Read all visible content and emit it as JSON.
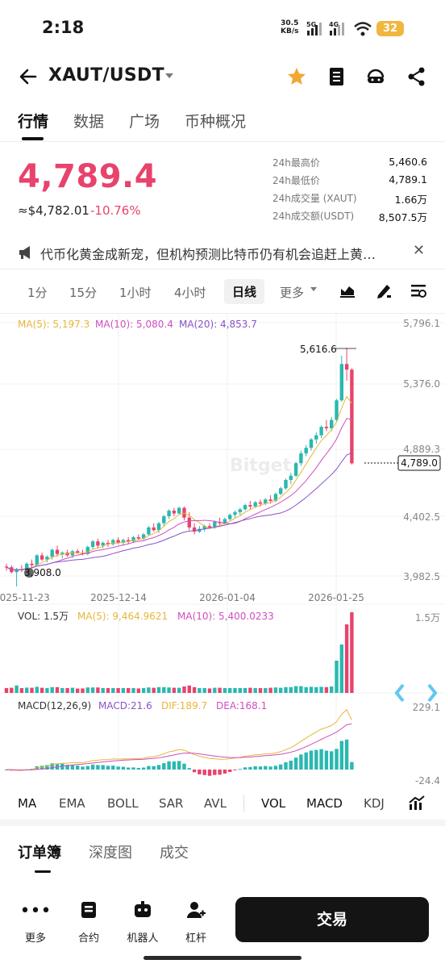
{
  "status_bar": {
    "time": "2:18",
    "net_speed_value": "30.5",
    "net_speed_unit": "KB/s",
    "net_5g": "5G",
    "net_4g": "4G",
    "battery": "32"
  },
  "header": {
    "pair": "XAUT/USDT",
    "icons": [
      "back-arrow-icon",
      "chevron-down-icon",
      "star-icon",
      "notebook-icon",
      "support-icon",
      "share-icon"
    ],
    "star_color": "#f0a830"
  },
  "tabs": [
    "行情",
    "数据",
    "广场",
    "币种概况"
  ],
  "ticker": {
    "price": "4,789.4",
    "usd_equiv": "≈$4,782.01",
    "change": "-10.76%",
    "color_down": "#e8436c",
    "color_up": "#2ab8b0",
    "stats": [
      {
        "label": "24h最高价",
        "value": "5,460.6"
      },
      {
        "label": "24h最低价",
        "value": "4,789.1"
      },
      {
        "label": "24h成交量 (XAUT)",
        "value": "1.66万"
      },
      {
        "label": "24h成交额(USDT)",
        "value": "8,507.5万"
      }
    ]
  },
  "news": {
    "text": "代币化黄金成新宠，但机构预测比特币仍有机会追赶上黄…"
  },
  "timeframes": [
    "1分",
    "15分",
    "1小时",
    "4小时",
    "日线",
    "更多"
  ],
  "selected_timeframe": "日线",
  "chart_tools": [
    "chart-style-icon",
    "draw-pen-icon",
    "indicator-settings-icon"
  ],
  "main_chart": {
    "ma5": "MA(5): 5,197.3",
    "ma10": "MA(10): 5,080.4",
    "ma20": "MA(20): 4,853.7",
    "ma5_color": "#e8b63a",
    "ma10_color": "#d04ec0",
    "ma20_color": "#8a52c6",
    "y_ticks": [
      "5,796.1",
      "5,376.0",
      "4,889.3",
      "4,402.5",
      "3,982.5"
    ],
    "high_label": "5,616.6",
    "low_label": "3,908.0",
    "current_price_label": "4,789.0",
    "x_ticks": [
      "2025-11-23",
      "2025-12-14",
      "2026-01-04",
      "2026-01-25"
    ],
    "watermark": "Bitget"
  },
  "volume_chart": {
    "vol": "VOL: 1.5万",
    "ma5": "MA(5): 9,464.9621",
    "ma10": "MA(10): 5,400.0233",
    "y_tick": "1.5万"
  },
  "macd_chart": {
    "params": "MACD(12,26,9)",
    "macd": "MACD:21.6",
    "dif": "DIF:189.7",
    "dea": "DEA:168.1",
    "y_top": "229.1",
    "y_bottom": "-24.4"
  },
  "indicators": [
    "MA",
    "EMA",
    "BOLL",
    "SAR",
    "AVL",
    "VOL",
    "MACD",
    "KDJ"
  ],
  "bottom_tabs": [
    "订单簿",
    "深度图",
    "成交"
  ],
  "bottom_nav": [
    {
      "label": "更多",
      "icon": "more-dots-icon"
    },
    {
      "label": "合约",
      "icon": "contract-icon"
    },
    {
      "label": "机器人",
      "icon": "robot-icon"
    },
    {
      "label": "杠杆",
      "icon": "leverage-icon"
    }
  ],
  "trade_button": "交易",
  "chart_data": {
    "type": "candlestick",
    "x_axis_ticks": [
      "2025-11-23",
      "2025-12-14",
      "2026-01-04",
      "2026-01-25"
    ],
    "ylim": [
      3982.5,
      5796.1
    ],
    "ohlc": [
      [
        4050,
        4070,
        4020,
        4045
      ],
      [
        4045,
        4060,
        4000,
        4010
      ],
      [
        4010,
        4040,
        3908,
        4030
      ],
      [
        4030,
        4060,
        4010,
        4025
      ],
      [
        4025,
        4080,
        4015,
        4070
      ],
      [
        4070,
        4100,
        4040,
        4060
      ],
      [
        4060,
        4140,
        4050,
        4130
      ],
      [
        4130,
        4150,
        4090,
        4100
      ],
      [
        4100,
        4130,
        4080,
        4120
      ],
      [
        4120,
        4180,
        4100,
        4170
      ],
      [
        4170,
        4200,
        4120,
        4140
      ],
      [
        4140,
        4160,
        4110,
        4150
      ],
      [
        4150,
        4170,
        4120,
        4130
      ],
      [
        4130,
        4170,
        4110,
        4160
      ],
      [
        4160,
        4175,
        4140,
        4150
      ],
      [
        4150,
        4170,
        4130,
        4140
      ],
      [
        4140,
        4200,
        4130,
        4190
      ],
      [
        4190,
        4240,
        4170,
        4230
      ],
      [
        4230,
        4250,
        4180,
        4200
      ],
      [
        4200,
        4230,
        4180,
        4220
      ],
      [
        4220,
        4240,
        4190,
        4210
      ],
      [
        4210,
        4250,
        4200,
        4240
      ],
      [
        4240,
        4260,
        4210,
        4220
      ],
      [
        4220,
        4250,
        4200,
        4240
      ],
      [
        4240,
        4260,
        4210,
        4230
      ],
      [
        4230,
        4270,
        4220,
        4260
      ],
      [
        4260,
        4280,
        4240,
        4250
      ],
      [
        4250,
        4290,
        4240,
        4280
      ],
      [
        4280,
        4340,
        4270,
        4330
      ],
      [
        4330,
        4360,
        4300,
        4310
      ],
      [
        4310,
        4370,
        4290,
        4360
      ],
      [
        4360,
        4420,
        4340,
        4410
      ],
      [
        4410,
        4460,
        4390,
        4450
      ],
      [
        4450,
        4470,
        4410,
        4430
      ],
      [
        4430,
        4480,
        4420,
        4470
      ],
      [
        4470,
        4480,
        4380,
        4400
      ],
      [
        4400,
        4440,
        4310,
        4330
      ],
      [
        4330,
        4360,
        4280,
        4300
      ],
      [
        4300,
        4340,
        4290,
        4320
      ],
      [
        4320,
        4350,
        4300,
        4340
      ],
      [
        4340,
        4360,
        4320,
        4330
      ],
      [
        4330,
        4380,
        4320,
        4370
      ],
      [
        4370,
        4400,
        4340,
        4360
      ],
      [
        4360,
        4400,
        4350,
        4390
      ],
      [
        4390,
        4430,
        4380,
        4420
      ],
      [
        4420,
        4450,
        4400,
        4440
      ],
      [
        4440,
        4470,
        4420,
        4460
      ],
      [
        4460,
        4500,
        4450,
        4490
      ],
      [
        4490,
        4520,
        4460,
        4480
      ],
      [
        4480,
        4520,
        4470,
        4510
      ],
      [
        4510,
        4530,
        4480,
        4500
      ],
      [
        4500,
        4540,
        4490,
        4530
      ],
      [
        4530,
        4560,
        4500,
        4520
      ],
      [
        4520,
        4580,
        4510,
        4570
      ],
      [
        4570,
        4620,
        4560,
        4610
      ],
      [
        4610,
        4680,
        4600,
        4670
      ],
      [
        4670,
        4720,
        4640,
        4700
      ],
      [
        4700,
        4800,
        4690,
        4790
      ],
      [
        4790,
        4880,
        4770,
        4860
      ],
      [
        4860,
        4920,
        4840,
        4900
      ],
      [
        4900,
        4970,
        4880,
        4960
      ],
      [
        4960,
        5010,
        4930,
        4990
      ],
      [
        4990,
        5060,
        4970,
        5050
      ],
      [
        5050,
        5100,
        5020,
        5040
      ],
      [
        5040,
        5120,
        5020,
        5100
      ],
      [
        5100,
        5250,
        5090,
        5240
      ],
      [
        5240,
        5560,
        5230,
        5500
      ],
      [
        5500,
        5616.6,
        5380,
        5460
      ],
      [
        5460,
        5470,
        4780,
        4789
      ]
    ],
    "volume_max": 15000
  }
}
